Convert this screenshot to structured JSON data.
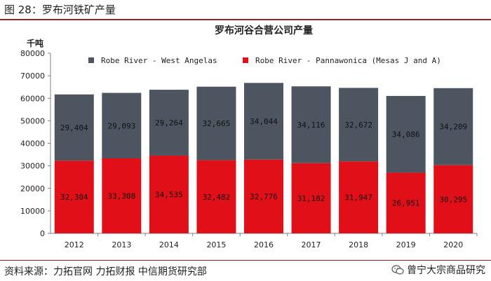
{
  "header": {
    "figure_label": "图 28：",
    "figure_title": "罗布河铁矿产量"
  },
  "footer": {
    "source": "资料来源：力拓官网  力拓财报  中信期货研究部",
    "watermark": "曾宁大宗商品研究"
  },
  "colors": {
    "west_angelas": "#4d5560",
    "pannawonica": "#e00f18",
    "accent_rule": "#a01f24"
  },
  "chart_data": {
    "type": "bar",
    "stacked": true,
    "title": "罗布河谷合营公司产量",
    "ylabel": "千吨",
    "xlabel": "",
    "ylim": [
      0,
      80000
    ],
    "yticks": [
      0,
      10000,
      20000,
      30000,
      40000,
      50000,
      60000,
      70000,
      80000
    ],
    "grid": false,
    "legend_position": "top",
    "categories": [
      "2012",
      "2013",
      "2014",
      "2015",
      "2016",
      "2017",
      "2018",
      "2019",
      "2020"
    ],
    "series": [
      {
        "name": "Robe River - Pannawonica (Mesas J and A)",
        "color": "#e00f18",
        "values": [
          32304,
          33308,
          34535,
          32482,
          32776,
          31182,
          31947,
          26951,
          30295
        ],
        "labels": [
          "32,304",
          "33,308",
          "34,535",
          "32,482",
          "32,776",
          "31,182",
          "31,947",
          "26,951",
          "30,295"
        ]
      },
      {
        "name": "Robe River - West Angelas",
        "color": "#4d5560",
        "values": [
          29404,
          29093,
          29264,
          32665,
          34044,
          34116,
          32672,
          34086,
          34209
        ],
        "labels": [
          "29,404",
          "29,093",
          "29,264",
          "32,665",
          "34,044",
          "34,116",
          "32,672",
          "34,086",
          "34,209"
        ]
      }
    ],
    "legend_order": [
      "Robe River - West Angelas",
      "Robe River - Pannawonica (Mesas J and A)"
    ]
  }
}
